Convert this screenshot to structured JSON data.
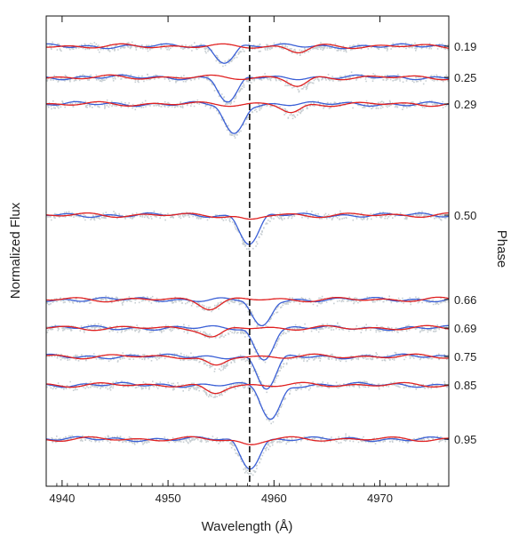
{
  "chart_data": {
    "type": "line",
    "title": "",
    "xlabel": "Wavelength (Å)",
    "ylabel": "Normalized Flux",
    "y2label": "Phase",
    "xlim": [
      4938.5,
      4976.5
    ],
    "xticks": [
      4940,
      4950,
      4960,
      4970
    ],
    "x_tick_labels": [
      "4940",
      "4950",
      "4960",
      "4970"
    ],
    "reference_line": {
      "x": 4957.7,
      "style": "dashed",
      "color": "#111111"
    },
    "grid": false,
    "legend": "none",
    "colors": {
      "observed": "#c8cfd3",
      "blue_model": "#3a5fd6",
      "red_model": "#e02020",
      "axis": "#111111"
    },
    "phases": [
      {
        "label": "0.19",
        "value": 0.19,
        "blue_center": 4955.3,
        "blue_depth": 0.55,
        "red_center": 4962.3,
        "red_depth": 0.22
      },
      {
        "label": "0.25",
        "value": 0.25,
        "blue_center": 4955.7,
        "blue_depth": 0.95,
        "red_center": 4962.3,
        "red_depth": 0.35
      },
      {
        "label": "0.29",
        "value": 0.29,
        "blue_center": 4956.2,
        "blue_depth": 1.15,
        "red_center": 4961.7,
        "red_depth": 0.35
      },
      {
        "label": "0.50",
        "value": 0.5,
        "blue_center": 4957.7,
        "blue_depth": 1.05,
        "red_center": 4957.7,
        "red_depth": 0.2
      },
      {
        "label": "0.66",
        "value": 0.66,
        "blue_center": 4958.8,
        "blue_depth": 1.05,
        "red_center": 4954.0,
        "red_depth": 0.3
      },
      {
        "label": "0.69",
        "value": 0.69,
        "blue_center": 4959.0,
        "blue_depth": 1.15,
        "red_center": 4954.3,
        "red_depth": 0.35
      },
      {
        "label": "0.75",
        "value": 0.75,
        "blue_center": 4959.3,
        "blue_depth": 1.2,
        "red_center": 4954.5,
        "red_depth": 0.4
      },
      {
        "label": "0.85",
        "value": 0.85,
        "blue_center": 4959.7,
        "blue_depth": 1.3,
        "red_center": 4954.3,
        "red_depth": 0.35
      },
      {
        "label": "0.95",
        "value": 0.95,
        "blue_center": 4957.7,
        "blue_depth": 1.05,
        "red_center": 4957.7,
        "red_depth": 0.2
      }
    ]
  }
}
